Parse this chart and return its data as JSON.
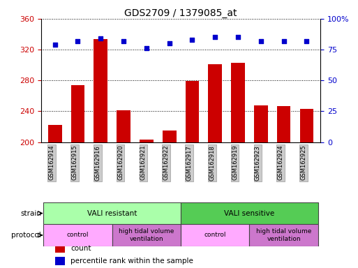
{
  "title": "GDS2709 / 1379085_at",
  "samples": [
    "GSM162914",
    "GSM162915",
    "GSM162916",
    "GSM162920",
    "GSM162921",
    "GSM162922",
    "GSM162917",
    "GSM162918",
    "GSM162919",
    "GSM162923",
    "GSM162924",
    "GSM162925"
  ],
  "counts": [
    222,
    274,
    334,
    241,
    203,
    215,
    279,
    301,
    303,
    248,
    247,
    243
  ],
  "percentiles": [
    79,
    82,
    84,
    82,
    76,
    80,
    83,
    85,
    85,
    82,
    82,
    82
  ],
  "ylim_left": [
    200,
    360
  ],
  "yticks_left": [
    200,
    240,
    280,
    320,
    360
  ],
  "ylim_right": [
    0,
    100
  ],
  "yticks_right": [
    0,
    25,
    50,
    75,
    100
  ],
  "bar_color": "#cc0000",
  "dot_color": "#0000cc",
  "grid_color": "#000000",
  "strain_groups": [
    {
      "label": "VALI resistant",
      "start": 0,
      "end": 6,
      "color": "#aaffaa"
    },
    {
      "label": "VALI sensitive",
      "start": 6,
      "end": 12,
      "color": "#55cc55"
    }
  ],
  "protocol_groups": [
    {
      "label": "control",
      "start": 0,
      "end": 3,
      "color": "#ffaaff"
    },
    {
      "label": "high tidal volume\nventilation",
      "start": 3,
      "end": 6,
      "color": "#cc77cc"
    },
    {
      "label": "control",
      "start": 6,
      "end": 9,
      "color": "#ffaaff"
    },
    {
      "label": "high tidal volume\nventilation",
      "start": 9,
      "end": 12,
      "color": "#cc77cc"
    }
  ],
  "legend_items": [
    {
      "label": "count",
      "color": "#cc0000"
    },
    {
      "label": "percentile rank within the sample",
      "color": "#0000cc"
    }
  ],
  "tick_label_bg": "#cccccc",
  "left_axis_color": "#cc0000",
  "right_axis_color": "#0000cc"
}
